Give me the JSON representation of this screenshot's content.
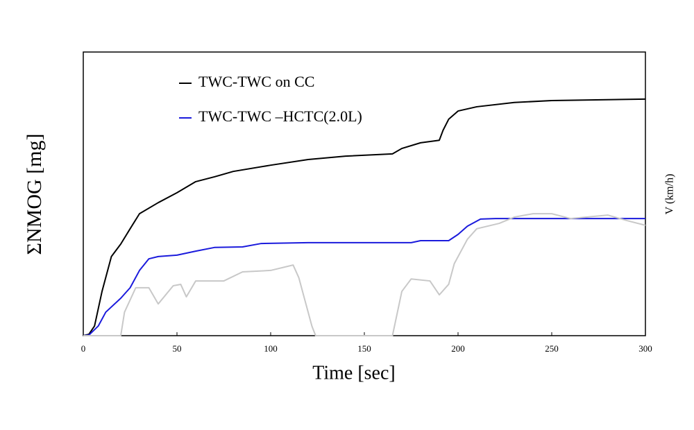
{
  "chart_data": {
    "type": "line",
    "xlabel": "Time [sec]",
    "ylabel": "ΣNMOG [mg]",
    "y2label": "V (km/h)",
    "xlim": [
      0,
      300
    ],
    "xticks": [
      0,
      50,
      100,
      150,
      200,
      250,
      300
    ],
    "ylim": [
      0,
      100
    ],
    "y2lim": [
      0,
      100
    ],
    "series": [
      {
        "name": "TWC-TWC on CC",
        "color": "#000000",
        "x": [
          0,
          3,
          6,
          10,
          15,
          20,
          25,
          30,
          40,
          50,
          60,
          70,
          80,
          100,
          120,
          140,
          165,
          170,
          180,
          190,
          192,
          195,
          200,
          210,
          230,
          250,
          300
        ],
        "values": [
          0,
          0.5,
          3.4,
          15.6,
          27.9,
          32.3,
          37.7,
          43.0,
          46.9,
          50.4,
          54.3,
          56.0,
          57.9,
          60.1,
          62.1,
          63.3,
          64.1,
          66.0,
          68.0,
          68.9,
          72.4,
          76.3,
          79.2,
          80.7,
          82.2,
          82.9,
          83.4
        ]
      },
      {
        "name": "TWC-TWC –HCTC(2.0L)",
        "color": "#1a1adc",
        "x": [
          0,
          3,
          8,
          12,
          20,
          25,
          30,
          35,
          40,
          50,
          60,
          70,
          85,
          95,
          120,
          175,
          180,
          195,
          200,
          205,
          212,
          220,
          300
        ],
        "values": [
          0,
          0.2,
          3.4,
          8.3,
          13.2,
          16.9,
          23.0,
          27.1,
          27.9,
          28.4,
          29.8,
          31.1,
          31.3,
          32.5,
          32.8,
          32.8,
          33.5,
          33.5,
          35.7,
          38.6,
          41.1,
          41.3,
          41.3
        ]
      },
      {
        "color": "#c8c8c8",
        "axis": "y2",
        "x": [
          0,
          20,
          22,
          28,
          35,
          40,
          48,
          52,
          55,
          60,
          75,
          85,
          100,
          112,
          115,
          122,
          124,
          165,
          170,
          175,
          185,
          190,
          195,
          198,
          205,
          210,
          222,
          230,
          240,
          250,
          260,
          280,
          290,
          300
        ],
        "values": [
          0,
          0,
          8.3,
          16.9,
          16.9,
          11.2,
          17.6,
          18.1,
          13.7,
          19.3,
          19.3,
          22.5,
          23.0,
          24.9,
          20.5,
          3.4,
          0,
          0,
          15.6,
          20.0,
          19.3,
          14.4,
          18.1,
          25.4,
          34.0,
          37.7,
          39.6,
          41.8,
          43.0,
          43.0,
          41.3,
          42.5,
          40.6,
          38.9
        ]
      }
    ]
  }
}
